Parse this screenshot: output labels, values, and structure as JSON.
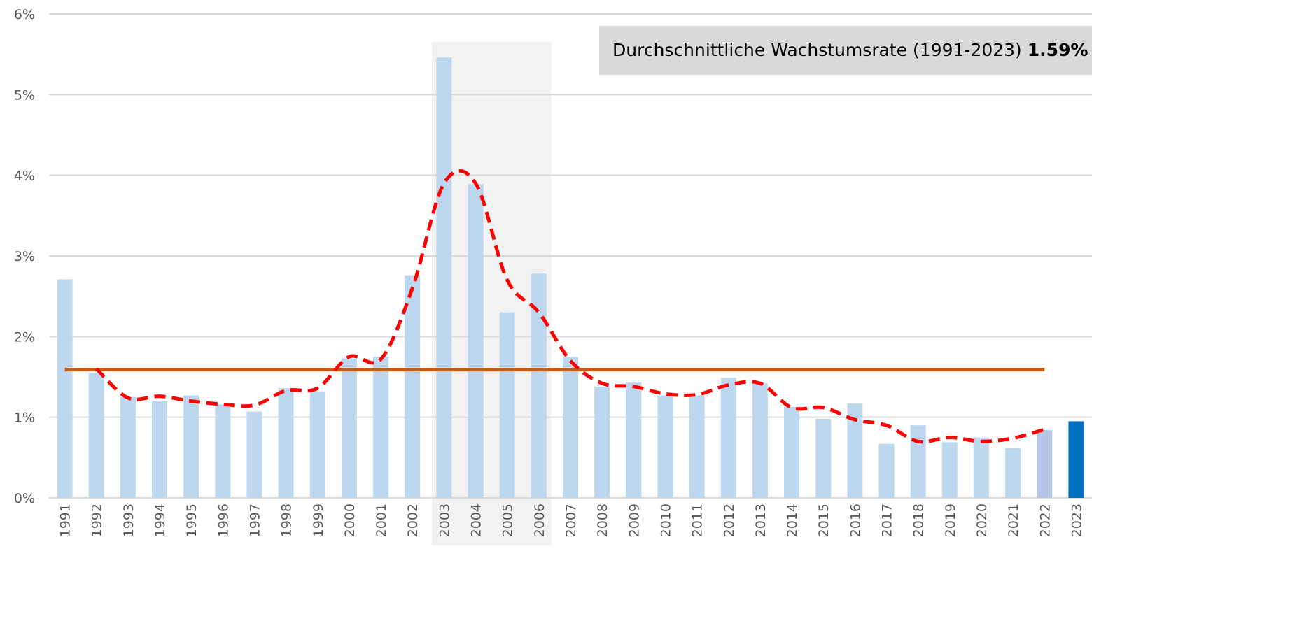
{
  "chart_data": {
    "type": "bar",
    "categories": [
      "1991",
      "1992",
      "1993",
      "1994",
      "1995",
      "1996",
      "1997",
      "1998",
      "1999",
      "2000",
      "2001",
      "2002",
      "2003",
      "2004",
      "2005",
      "2006",
      "2007",
      "2008",
      "2009",
      "2010",
      "2011",
      "2012",
      "2013",
      "2014",
      "2015",
      "2016",
      "2017",
      "2018",
      "2019",
      "2020",
      "2021",
      "2022",
      "2023"
    ],
    "series": [
      {
        "type": "bar",
        "colors": [
          "#bdd7ee",
          "#bdd7ee",
          "#bdd7ee",
          "#bdd7ee",
          "#bdd7ee",
          "#bdd7ee",
          "#bdd7ee",
          "#bdd7ee",
          "#bdd7ee",
          "#bdd7ee",
          "#bdd7ee",
          "#bdd7ee",
          "#bdd7ee",
          "#bdd7ee",
          "#bdd7ee",
          "#bdd7ee",
          "#bdd7ee",
          "#bdd7ee",
          "#bdd7ee",
          "#bdd7ee",
          "#bdd7ee",
          "#bdd7ee",
          "#bdd7ee",
          "#bdd7ee",
          "#bdd7ee",
          "#bdd7ee",
          "#bdd7ee",
          "#bdd7ee",
          "#bdd7ee",
          "#bdd7ee",
          "#bdd7ee",
          "#b4c7e7",
          "#0070c0"
        ],
        "values": [
          2.71,
          1.55,
          1.25,
          1.2,
          1.27,
          1.16,
          1.07,
          1.36,
          1.32,
          1.73,
          1.75,
          2.76,
          5.46,
          3.89,
          2.3,
          2.78,
          1.75,
          1.38,
          1.43,
          1.27,
          1.27,
          1.49,
          1.42,
          1.13,
          0.98,
          1.17,
          0.67,
          0.9,
          0.69,
          0.75,
          0.62,
          0.84,
          0.95
        ]
      },
      {
        "type": "line",
        "color": "#ff0000",
        "values": [
          null,
          1.6,
          1.24,
          1.26,
          1.2,
          1.16,
          1.15,
          1.33,
          1.36,
          1.75,
          1.72,
          2.6,
          3.9,
          3.9,
          2.7,
          2.3,
          1.7,
          1.42,
          1.38,
          1.29,
          1.28,
          1.4,
          1.42,
          1.12,
          1.12,
          0.97,
          0.9,
          0.7,
          0.75,
          0.7,
          0.74,
          0.85,
          null
        ]
      }
    ],
    "average": {
      "text": "Durchschnittliche Wachstumsrate (1991-2023)",
      "value": 1.59,
      "label": "1.59%",
      "color": "#c55a11"
    },
    "ylim": [
      0,
      6
    ],
    "yticks": [
      {
        "value": 0,
        "label": "0%"
      },
      {
        "value": 1,
        "label": "1%"
      },
      {
        "value": 2,
        "label": "2%"
      },
      {
        "value": 3,
        "label": "3%"
      },
      {
        "value": 4,
        "label": "4%"
      },
      {
        "value": 5,
        "label": "5%"
      },
      {
        "value": 6,
        "label": "6%"
      }
    ],
    "grid": true
  }
}
